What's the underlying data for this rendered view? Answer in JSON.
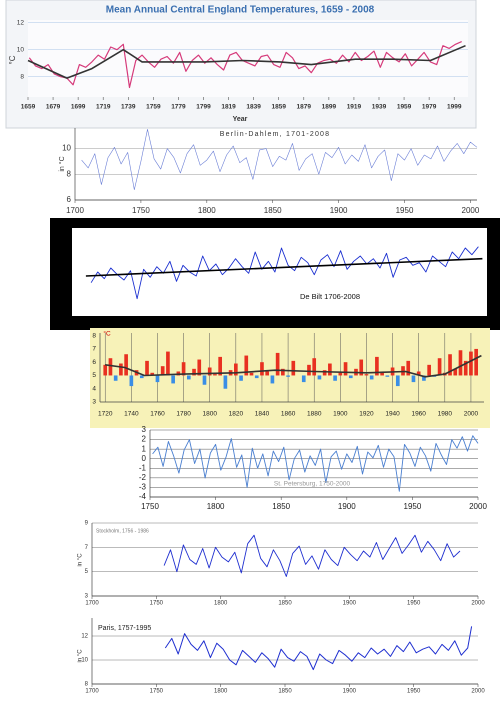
{
  "chart_data": [
    {
      "type": "line",
      "title": "Mean Annual Central England Temperatures, 1659 - 2008",
      "xlabel": "Year",
      "ylabel": "°C",
      "x": [
        1660,
        1665,
        1670,
        1675,
        1680,
        1685,
        1690,
        1695,
        1700,
        1705,
        1710,
        1715,
        1720,
        1725,
        1730,
        1735,
        1740,
        1745,
        1750,
        1755,
        1760,
        1765,
        1770,
        1775,
        1780,
        1785,
        1790,
        1795,
        1800,
        1805,
        1810,
        1815,
        1820,
        1825,
        1830,
        1835,
        1840,
        1845,
        1850,
        1855,
        1860,
        1865,
        1870,
        1875,
        1880,
        1885,
        1890,
        1895,
        1900,
        1905,
        1910,
        1915,
        1920,
        1925,
        1930,
        1935,
        1940,
        1945,
        1950,
        1955,
        1960,
        1965,
        1970,
        1975,
        1980,
        1985,
        1990,
        1995,
        2000,
        2005
      ],
      "series": [
        {
          "color": "#d63a7a",
          "values": [
            9.4,
            8.8,
            8.6,
            8.9,
            8.2,
            8.0,
            7.9,
            7.4,
            8.9,
            8.7,
            9.1,
            9.6,
            9.3,
            10.2,
            10.0,
            10.4,
            7.2,
            9.2,
            9.6,
            9.1,
            8.7,
            9.3,
            9.5,
            9.0,
            9.8,
            8.4,
            9.2,
            9.6,
            9.0,
            9.4,
            8.9,
            8.5,
            9.6,
            9.8,
            9.2,
            9.0,
            8.8,
            9.5,
            9.6,
            8.9,
            8.7,
            9.8,
            9.4,
            8.6,
            8.8,
            8.3,
            9.0,
            9.2,
            9.3,
            9.0,
            9.6,
            9.1,
            9.8,
            9.2,
            9.5,
            9.9,
            8.7,
            9.8,
            9.4,
            9.1,
            9.7,
            8.8,
            9.3,
            9.8,
            9.1,
            8.9,
            10.3,
            10.1,
            10.4,
            10.6
          ]
        },
        {
          "color": "#333333",
          "x": [
            1659,
            1690,
            1710,
            1735,
            1750,
            1800,
            1830,
            1860,
            1885,
            1920,
            1950,
            1980,
            2008
          ],
          "values": [
            9.2,
            7.9,
            8.6,
            10.0,
            9.1,
            9.1,
            9.2,
            9.1,
            8.9,
            9.3,
            9.3,
            9.2,
            10.3
          ]
        }
      ],
      "xlim": [
        1659,
        2010
      ],
      "xticks": [
        1659,
        1679,
        1699,
        1719,
        1739,
        1759,
        1779,
        1799,
        1819,
        1839,
        1859,
        1879,
        1899,
        1919,
        1939,
        1959,
        1979,
        1999
      ],
      "ylim": [
        6.5,
        12.2
      ],
      "yticks": [
        8,
        10,
        12
      ],
      "grid": "y"
    },
    {
      "type": "line",
      "title": "Berlin-Dahlem, 1701-2008",
      "ylabel": "in °C",
      "x": [
        1705,
        1710,
        1715,
        1720,
        1725,
        1730,
        1735,
        1740,
        1745,
        1750,
        1755,
        1760,
        1765,
        1770,
        1775,
        1780,
        1785,
        1790,
        1795,
        1800,
        1805,
        1810,
        1815,
        1820,
        1825,
        1830,
        1835,
        1840,
        1845,
        1850,
        1855,
        1860,
        1865,
        1870,
        1875,
        1880,
        1885,
        1890,
        1895,
        1900,
        1905,
        1910,
        1915,
        1920,
        1925,
        1930,
        1935,
        1940,
        1945,
        1950,
        1955,
        1960,
        1965,
        1970,
        1975,
        1980,
        1985,
        1990,
        1995,
        2000,
        2005
      ],
      "series": [
        {
          "color": "#6b7fd6",
          "values": [
            9.1,
            8.5,
            9.6,
            7.2,
            9.3,
            10.1,
            8.8,
            9.7,
            6.8,
            9.0,
            11.5,
            9.2,
            8.4,
            10.0,
            9.3,
            8.1,
            9.6,
            10.3,
            8.7,
            9.1,
            9.8,
            8.2,
            9.5,
            10.2,
            8.9,
            9.3,
            7.6,
            9.9,
            10.0,
            8.6,
            9.4,
            9.1,
            10.4,
            8.3,
            9.2,
            9.6,
            8.0,
            9.7,
            9.3,
            10.1,
            8.8,
            9.5,
            9.0,
            10.3,
            8.5,
            9.4,
            9.9,
            7.5,
            9.6,
            9.1,
            10.0,
            8.7,
            9.5,
            9.2,
            10.2,
            9.0,
            9.8,
            10.4,
            9.6,
            10.5,
            10.1
          ]
        }
      ],
      "xlim": [
        1700,
        2005
      ],
      "xticks": [
        1700,
        1750,
        1800,
        1850,
        1900,
        1950,
        2000
      ],
      "ylim": [
        6,
        11.6
      ],
      "yticks": [
        6,
        8,
        10
      ],
      "grid": "y"
    },
    {
      "type": "line",
      "title": "De Bilt 1706-2008",
      "x": [
        1710,
        1715,
        1720,
        1725,
        1730,
        1735,
        1740,
        1745,
        1750,
        1755,
        1760,
        1765,
        1770,
        1775,
        1780,
        1785,
        1790,
        1795,
        1800,
        1805,
        1810,
        1815,
        1820,
        1825,
        1830,
        1835,
        1840,
        1845,
        1850,
        1855,
        1860,
        1865,
        1870,
        1875,
        1880,
        1885,
        1890,
        1895,
        1900,
        1905,
        1910,
        1915,
        1920,
        1925,
        1930,
        1935,
        1940,
        1945,
        1950,
        1955,
        1960,
        1965,
        1970,
        1975,
        1980,
        1985,
        1990,
        1995,
        2000,
        2005
      ],
      "series": [
        {
          "color": "#1a2fd0",
          "values": [
            8.2,
            9.0,
            8.5,
            9.3,
            8.8,
            8.4,
            9.1,
            7.0,
            9.2,
            8.6,
            9.4,
            8.9,
            9.8,
            8.3,
            9.5,
            9.0,
            8.7,
            10.2,
            9.1,
            9.6,
            8.8,
            9.3,
            10.0,
            9.4,
            8.9,
            10.5,
            9.2,
            9.8,
            9.0,
            10.8,
            9.5,
            9.1,
            10.1,
            9.7,
            8.8,
            9.9,
            10.3,
            9.4,
            10.6,
            9.2,
            9.8,
            10.2,
            9.6,
            10.0,
            9.3,
            10.4,
            8.6,
            9.9,
            10.1,
            9.5,
            9.7,
            9.0,
            10.2,
            9.8,
            9.4,
            10.5,
            10.0,
            10.8,
            10.3,
            10.9
          ]
        },
        {
          "color": "#000000",
          "x": [
            1706,
            2008
          ],
          "values": [
            8.7,
            10.0
          ]
        }
      ],
      "xlim": [
        1700,
        2010
      ],
      "ylim": [
        6,
        12
      ]
    },
    {
      "type": "bar",
      "ylabel": "°C",
      "x": [
        1720,
        1724,
        1728,
        1732,
        1736,
        1740,
        1744,
        1748,
        1752,
        1756,
        1760,
        1764,
        1768,
        1772,
        1776,
        1780,
        1784,
        1788,
        1792,
        1796,
        1800,
        1804,
        1808,
        1812,
        1816,
        1820,
        1824,
        1828,
        1832,
        1836,
        1840,
        1844,
        1848,
        1852,
        1856,
        1860,
        1864,
        1868,
        1872,
        1876,
        1880,
        1884,
        1888,
        1892,
        1896,
        1900,
        1904,
        1908,
        1912,
        1916,
        1920,
        1924,
        1928,
        1932,
        1936,
        1940,
        1944,
        1948,
        1952,
        1956,
        1960,
        1964,
        1968,
        1972,
        1976,
        1980,
        1984,
        1988,
        1992,
        1996,
        2000,
        2004
      ],
      "values": [
        5.8,
        6.3,
        4.6,
        5.9,
        6.6,
        4.2,
        5.4,
        4.8,
        6.1,
        5.2,
        4.5,
        5.7,
        6.8,
        4.4,
        5.3,
        6.0,
        4.7,
        5.5,
        6.2,
        4.3,
        5.6,
        5.1,
        6.4,
        4.0,
        5.4,
        5.9,
        4.6,
        6.5,
        5.2,
        4.8,
        6.0,
        5.3,
        4.4,
        6.7,
        5.5,
        4.9,
        6.1,
        5.0,
        4.5,
        5.8,
        6.3,
        4.7,
        5.4,
        5.9,
        4.6,
        5.2,
        6.0,
        4.8,
        5.5,
        6.2,
        5.1,
        4.7,
        6.4,
        5.3,
        4.9,
        5.6,
        4.2,
        5.7,
        6.1,
        4.5,
        5.3,
        4.6,
        5.8,
        4.9,
        6.3,
        5.2,
        6.6,
        5.5,
        6.9,
        6.1,
        6.8,
        7.0
      ],
      "baseline": 5,
      "color_above": "#e83020",
      "color_below": "#3a8ee6",
      "series": [
        {
          "color": "#333333",
          "x": [
            1720,
            1735,
            1750,
            1780,
            1820,
            1850,
            1880,
            1920,
            1950,
            1965,
            1980,
            2008
          ],
          "values": [
            5.8,
            5.6,
            5.0,
            5.1,
            5.2,
            5.4,
            5.3,
            5.2,
            5.3,
            4.9,
            5.1,
            6.5
          ]
        }
      ],
      "xlim": [
        1716,
        2010
      ],
      "xticks": [
        1720,
        1740,
        1760,
        1780,
        1800,
        1820,
        1840,
        1860,
        1880,
        1900,
        1920,
        1940,
        1960,
        1980,
        2000
      ],
      "ylim": [
        3,
        8.2
      ],
      "yticks": [
        3,
        4,
        5,
        6,
        7,
        8
      ],
      "grid": "x"
    },
    {
      "type": "line",
      "title": "St. Petersburg, 1750-2000",
      "x": [
        1752,
        1756,
        1760,
        1764,
        1768,
        1772,
        1776,
        1780,
        1784,
        1788,
        1792,
        1796,
        1800,
        1804,
        1808,
        1812,
        1816,
        1820,
        1824,
        1828,
        1832,
        1836,
        1840,
        1844,
        1848,
        1852,
        1856,
        1860,
        1864,
        1868,
        1872,
        1876,
        1880,
        1884,
        1888,
        1892,
        1896,
        1900,
        1904,
        1908,
        1912,
        1916,
        1920,
        1924,
        1928,
        1932,
        1936,
        1940,
        1944,
        1948,
        1952,
        1956,
        1960,
        1964,
        1968,
        1972,
        1976,
        1980,
        1984,
        1988,
        1992,
        1996,
        2000
      ],
      "series": [
        {
          "color": "#4a7fd0",
          "values": [
            0.5,
            1.2,
            -0.8,
            1.8,
            0.3,
            -1.5,
            0.9,
            2.0,
            -0.5,
            1.0,
            -2.0,
            0.6,
            1.5,
            -1.2,
            0.2,
            2.1,
            -0.9,
            0.4,
            -3.0,
            1.1,
            -1.0,
            0.5,
            -1.8,
            0.8,
            -0.3,
            1.2,
            -2.2,
            0.0,
            0.9,
            -1.4,
            0.3,
            -0.7,
            1.0,
            -2.5,
            0.2,
            0.8,
            -1.1,
            0.5,
            -0.4,
            1.3,
            -1.6,
            0.7,
            0.1,
            1.4,
            -0.9,
            1.0,
            0.2,
            -3.4,
            1.5,
            0.6,
            -0.8,
            1.2,
            0.3,
            -1.3,
            1.6,
            0.4,
            -0.6,
            2.0,
            1.1,
            2.3,
            0.8,
            2.4,
            1.6
          ]
        }
      ],
      "xlim": [
        1750,
        2000
      ],
      "xticks": [
        1750,
        1800,
        1850,
        1900,
        1950,
        2000
      ],
      "ylim": [
        -4,
        3
      ],
      "yticks": [
        -4,
        -3,
        -2,
        -1,
        0,
        1,
        2,
        3
      ],
      "grid": "y"
    },
    {
      "type": "line",
      "title": "Stockholm, 1756 - 1986",
      "ylabel": "in °C",
      "x": [
        1756,
        1761,
        1766,
        1771,
        1776,
        1781,
        1786,
        1791,
        1796,
        1801,
        1806,
        1811,
        1816,
        1821,
        1826,
        1831,
        1836,
        1841,
        1846,
        1851,
        1856,
        1861,
        1866,
        1871,
        1876,
        1881,
        1886,
        1891,
        1896,
        1901,
        1906,
        1911,
        1916,
        1921,
        1926,
        1931,
        1936,
        1941,
        1946,
        1951,
        1956,
        1961,
        1966,
        1971,
        1976,
        1981,
        1986
      ],
      "series": [
        {
          "color": "#1f2fd0",
          "values": [
            5.5,
            6.8,
            5.0,
            7.2,
            6.0,
            5.6,
            6.9,
            5.3,
            7.0,
            6.2,
            5.8,
            6.6,
            4.9,
            7.3,
            8.0,
            6.1,
            5.4,
            6.8,
            5.9,
            4.6,
            6.5,
            7.1,
            5.6,
            6.3,
            5.2,
            6.8,
            6.0,
            5.5,
            7.0,
            6.4,
            5.9,
            6.7,
            6.2,
            7.4,
            6.0,
            6.9,
            7.8,
            6.5,
            7.2,
            8.0,
            6.6,
            7.5,
            6.8,
            5.9,
            7.3,
            6.2,
            6.7
          ]
        }
      ],
      "xlim": [
        1700,
        2000
      ],
      "xticks": [
        1700,
        1750,
        1800,
        1850,
        1900,
        1950,
        2000
      ],
      "ylim": [
        3,
        9
      ],
      "yticks": [
        3,
        5,
        7,
        9
      ],
      "grid": "y"
    },
    {
      "type": "line",
      "title": "Paris, 1757-1995",
      "ylabel": "in °C",
      "x": [
        1757,
        1762,
        1767,
        1772,
        1777,
        1782,
        1787,
        1792,
        1797,
        1802,
        1807,
        1812,
        1817,
        1822,
        1827,
        1832,
        1837,
        1842,
        1847,
        1852,
        1857,
        1862,
        1867,
        1872,
        1877,
        1882,
        1887,
        1892,
        1897,
        1902,
        1907,
        1912,
        1917,
        1922,
        1927,
        1932,
        1937,
        1942,
        1947,
        1952,
        1957,
        1962,
        1967,
        1972,
        1977,
        1982,
        1987,
        1992,
        1995
      ],
      "series": [
        {
          "color": "#1f2fd0",
          "values": [
            11.0,
            11.8,
            10.5,
            12.2,
            11.3,
            10.8,
            11.6,
            10.2,
            11.4,
            10.9,
            10.0,
            9.6,
            10.8,
            10.3,
            9.8,
            10.6,
            10.1,
            9.4,
            10.9,
            10.2,
            9.9,
            10.7,
            10.3,
            9.2,
            10.5,
            10.0,
            9.7,
            10.8,
            10.4,
            9.9,
            10.6,
            10.2,
            11.0,
            10.5,
            10.9,
            10.3,
            11.2,
            10.7,
            11.5,
            10.6,
            10.9,
            11.1,
            10.5,
            11.3,
            10.8,
            11.6,
            10.4,
            11.0,
            12.8
          ]
        }
      ],
      "xlim": [
        1700,
        2000
      ],
      "xticks": [
        1700,
        1750,
        1800,
        1850,
        1900,
        1950,
        2000
      ],
      "ylim": [
        8,
        13.5
      ],
      "yticks": [
        8,
        10,
        12
      ],
      "grid": "y"
    }
  ]
}
